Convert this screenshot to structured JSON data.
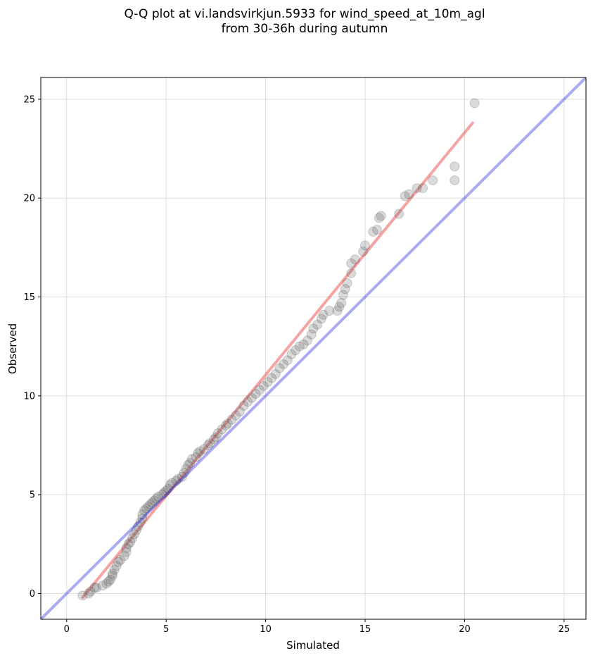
{
  "chart_data": {
    "type": "scatter",
    "title_line1": "Q-Q plot at vi.landsvirkjun.5933 for wind_speed_at_10m_agl",
    "title_line2": "from 30-36h during autumn",
    "xlabel": "Simulated",
    "ylabel": "Observed",
    "xlim": [
      -1.3,
      26.1
    ],
    "ylim": [
      -1.3,
      26.1
    ],
    "xticks": [
      0,
      5,
      10,
      15,
      20,
      25
    ],
    "yticks": [
      0,
      5,
      10,
      15,
      20,
      25
    ],
    "grid": true,
    "colors": {
      "points": "#555555",
      "identity_line": "#0000dd",
      "fit_line": "#ee3333",
      "grid": "#dddddd"
    },
    "identity_line": {
      "x": [
        -1.3,
        26.1
      ],
      "y": [
        -1.3,
        26.1
      ]
    },
    "fit_line": {
      "x": [
        0.8,
        20.4
      ],
      "y": [
        -0.2,
        23.8
      ]
    },
    "points": [
      [
        0.8,
        -0.1
      ],
      [
        1.1,
        0.0
      ],
      [
        1.2,
        0.1
      ],
      [
        1.4,
        0.3
      ],
      [
        1.5,
        0.3
      ],
      [
        1.8,
        0.4
      ],
      [
        2.0,
        0.5
      ],
      [
        2.1,
        0.6
      ],
      [
        2.2,
        0.7
      ],
      [
        2.3,
        0.9
      ],
      [
        2.3,
        1.0
      ],
      [
        2.4,
        1.2
      ],
      [
        2.5,
        1.4
      ],
      [
        2.6,
        1.6
      ],
      [
        2.7,
        1.7
      ],
      [
        2.9,
        1.9
      ],
      [
        3.0,
        2.1
      ],
      [
        3.0,
        2.3
      ],
      [
        3.1,
        2.5
      ],
      [
        3.2,
        2.6
      ],
      [
        3.3,
        2.8
      ],
      [
        3.4,
        3.0
      ],
      [
        3.5,
        3.2
      ],
      [
        3.6,
        3.4
      ],
      [
        3.7,
        3.6
      ],
      [
        3.8,
        3.8
      ],
      [
        3.8,
        4.0
      ],
      [
        3.9,
        4.2
      ],
      [
        4.0,
        4.3
      ],
      [
        4.1,
        4.4
      ],
      [
        4.2,
        4.5
      ],
      [
        4.3,
        4.6
      ],
      [
        4.4,
        4.7
      ],
      [
        4.5,
        4.8
      ],
      [
        4.6,
        4.9
      ],
      [
        4.8,
        5.0
      ],
      [
        4.9,
        5.1
      ],
      [
        5.0,
        5.2
      ],
      [
        5.1,
        5.3
      ],
      [
        5.2,
        5.5
      ],
      [
        5.3,
        5.6
      ],
      [
        5.5,
        5.7
      ],
      [
        5.6,
        5.8
      ],
      [
        5.8,
        5.9
      ],
      [
        5.9,
        6.1
      ],
      [
        6.0,
        6.3
      ],
      [
        6.1,
        6.5
      ],
      [
        6.2,
        6.6
      ],
      [
        6.3,
        6.8
      ],
      [
        6.5,
        6.9
      ],
      [
        6.6,
        7.1
      ],
      [
        6.7,
        7.2
      ],
      [
        6.9,
        7.3
      ],
      [
        7.1,
        7.5
      ],
      [
        7.2,
        7.6
      ],
      [
        7.4,
        7.8
      ],
      [
        7.5,
        7.9
      ],
      [
        7.6,
        8.1
      ],
      [
        7.8,
        8.3
      ],
      [
        8.0,
        8.5
      ],
      [
        8.1,
        8.6
      ],
      [
        8.3,
        8.8
      ],
      [
        8.5,
        9.0
      ],
      [
        8.7,
        9.2
      ],
      [
        8.9,
        9.5
      ],
      [
        9.1,
        9.7
      ],
      [
        9.3,
        9.9
      ],
      [
        9.5,
        10.1
      ],
      [
        9.7,
        10.3
      ],
      [
        9.9,
        10.5
      ],
      [
        10.1,
        10.7
      ],
      [
        10.3,
        10.9
      ],
      [
        10.5,
        11.1
      ],
      [
        10.7,
        11.4
      ],
      [
        10.9,
        11.6
      ],
      [
        11.1,
        11.8
      ],
      [
        11.3,
        12.1
      ],
      [
        11.5,
        12.3
      ],
      [
        11.7,
        12.5
      ],
      [
        11.9,
        12.6
      ],
      [
        12.1,
        12.8
      ],
      [
        12.3,
        13.1
      ],
      [
        12.4,
        13.4
      ],
      [
        12.6,
        13.6
      ],
      [
        12.8,
        13.9
      ],
      [
        12.9,
        14.1
      ],
      [
        13.2,
        14.3
      ],
      [
        13.6,
        14.3
      ],
      [
        13.7,
        14.5
      ],
      [
        13.8,
        14.7
      ],
      [
        13.9,
        15.1
      ],
      [
        14.0,
        15.4
      ],
      [
        14.1,
        15.7
      ],
      [
        14.3,
        16.2
      ],
      [
        14.3,
        16.7
      ],
      [
        14.5,
        16.9
      ],
      [
        14.9,
        17.3
      ],
      [
        15.0,
        17.6
      ],
      [
        15.4,
        18.3
      ],
      [
        15.6,
        18.4
      ],
      [
        15.7,
        19.0
      ],
      [
        15.8,
        19.1
      ],
      [
        16.7,
        19.2
      ],
      [
        17.0,
        20.1
      ],
      [
        17.2,
        20.2
      ],
      [
        17.6,
        20.5
      ],
      [
        17.9,
        20.5
      ],
      [
        18.4,
        20.9
      ],
      [
        19.5,
        20.9
      ],
      [
        19.5,
        21.6
      ],
      [
        20.5,
        24.8
      ]
    ]
  }
}
